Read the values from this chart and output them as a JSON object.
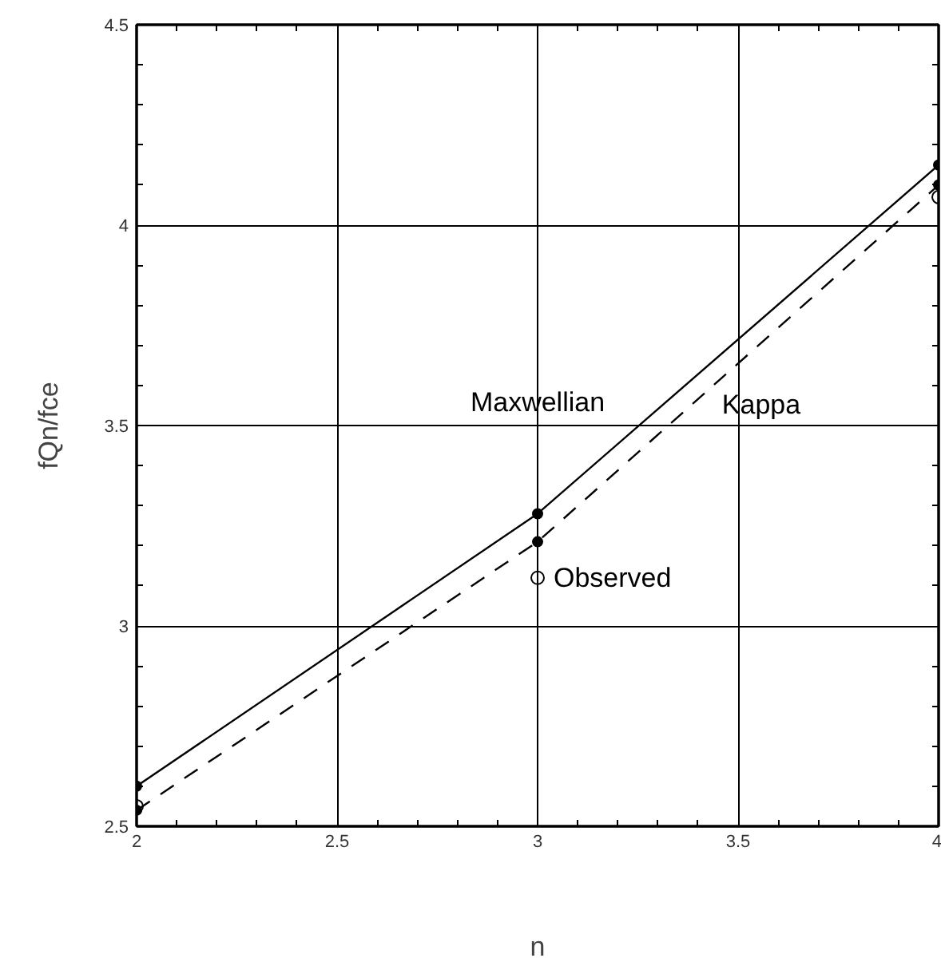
{
  "chart_data": {
    "type": "line",
    "xlabel": "n",
    "ylabel": "fQn/fce",
    "xlim": [
      2,
      4
    ],
    "ylim": [
      2.5,
      4.5
    ],
    "xticks": [
      2,
      2.5,
      3,
      3.5,
      4
    ],
    "yticks": [
      2.5,
      3,
      3.5,
      4,
      4.5
    ],
    "grid": true,
    "series": [
      {
        "name": "Maxwellian",
        "color": "#000000",
        "x": [
          2,
          3,
          4
        ],
        "values": [
          2.6,
          3.28,
          4.15
        ],
        "marker": "circle",
        "line_style": "solid"
      },
      {
        "name": "Kappa",
        "color": "#000000",
        "x": [
          2,
          3,
          4
        ],
        "values": [
          2.54,
          3.21,
          4.1
        ],
        "marker": "circle",
        "line_style": "dashed"
      },
      {
        "name": "Observed",
        "type": "scatter",
        "color": "#000000",
        "x": [
          2,
          3,
          4
        ],
        "values": [
          2.55,
          3.12,
          4.07
        ],
        "marker": "circle"
      }
    ]
  }
}
